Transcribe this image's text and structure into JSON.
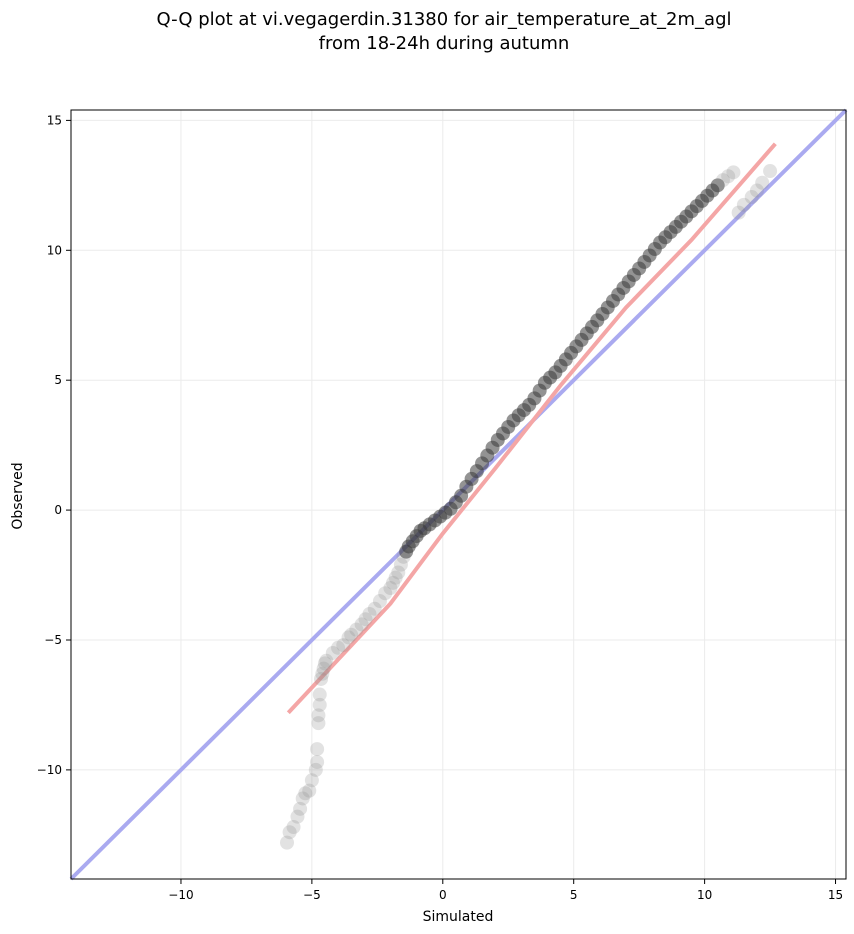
{
  "chart_data": {
    "type": "scatter",
    "title_lines": [
      "Q-Q plot at vi.vegagerdin.31380 for air_temperature_at_2m_agl",
      "from 18-24h during autumn"
    ],
    "xlabel": "Simulated",
    "ylabel": "Observed",
    "xlim": [
      -14.2,
      15.4
    ],
    "ylim": [
      -14.2,
      15.4
    ],
    "x_ticks": [
      -10,
      -5,
      0,
      5,
      10,
      15
    ],
    "y_ticks": [
      -10,
      -5,
      0,
      5,
      10,
      15
    ],
    "x_tick_labels": [
      "−10",
      "−5",
      "0",
      "5",
      "10",
      "15"
    ],
    "y_tick_labels": [
      "−10",
      "−5",
      "0",
      "5",
      "10",
      "15"
    ],
    "grid": true,
    "identity_line": {
      "x": [
        -14.2,
        15.4
      ],
      "y": [
        -14.2,
        15.4
      ],
      "color": "#aaaaf0"
    },
    "fit_line": {
      "x": [
        -5.9,
        -2.0,
        0.0,
        2.0,
        4.5,
        7.0,
        9.5,
        12.7
      ],
      "y": [
        -7.8,
        -3.6,
        -0.9,
        1.6,
        4.8,
        7.8,
        10.4,
        14.1
      ],
      "color": "#f4a6a6"
    },
    "series": [
      {
        "x": [
          -5.95,
          -5.85,
          -5.7,
          -5.55,
          -5.45,
          -5.35,
          -5.25,
          -5.1,
          -5.0,
          -4.85,
          -4.8,
          -4.8,
          -4.75,
          -4.75,
          -4.7,
          -4.7,
          -4.65,
          -4.6,
          -4.55,
          -4.5,
          -4.45,
          -4.2,
          -4.0,
          -3.8,
          -3.6,
          -3.5,
          -3.3,
          -3.1,
          -2.95,
          -2.8,
          -2.6,
          -2.4,
          -2.2,
          -2.0,
          -1.9,
          -1.8,
          -1.7,
          -1.6,
          -1.5,
          -1.4,
          -1.3,
          -1.15,
          -1.0,
          -0.85,
          -0.7,
          -0.5,
          -0.3,
          -0.1,
          0.1,
          0.3,
          0.5,
          0.7,
          0.9,
          1.1,
          1.3,
          1.5,
          1.7,
          1.9,
          2.1,
          2.3,
          2.5,
          2.7,
          2.9,
          3.1,
          3.3,
          3.5,
          3.7,
          3.9,
          4.1,
          4.3,
          4.5,
          4.7,
          4.9,
          5.1,
          5.3,
          5.5,
          5.7,
          5.9,
          6.1,
          6.3,
          6.5,
          6.7,
          6.9,
          7.1,
          7.3,
          7.5,
          7.7,
          7.9,
          8.1,
          8.3,
          8.5,
          8.7,
          8.9,
          9.1,
          9.3,
          9.5,
          9.7,
          9.9,
          10.1,
          10.3,
          10.5,
          10.7,
          10.9,
          11.1,
          11.3,
          11.5,
          11.8,
          12.0,
          12.2,
          12.5
        ],
        "y": [
          -12.8,
          -12.4,
          -12.2,
          -11.8,
          -11.5,
          -11.1,
          -10.9,
          -10.8,
          -10.4,
          -10.0,
          -9.7,
          -9.2,
          -8.2,
          -7.9,
          -7.5,
          -7.1,
          -6.5,
          -6.3,
          -6.1,
          -5.9,
          -5.8,
          -5.5,
          -5.3,
          -5.2,
          -4.9,
          -4.8,
          -4.6,
          -4.4,
          -4.2,
          -4.0,
          -3.8,
          -3.5,
          -3.2,
          -3.0,
          -2.8,
          -2.6,
          -2.4,
          -2.1,
          -1.8,
          -1.6,
          -1.4,
          -1.2,
          -1.0,
          -0.8,
          -0.7,
          -0.55,
          -0.4,
          -0.25,
          -0.1,
          0.05,
          0.3,
          0.55,
          0.9,
          1.2,
          1.5,
          1.8,
          2.1,
          2.4,
          2.7,
          2.95,
          3.2,
          3.45,
          3.65,
          3.85,
          4.05,
          4.3,
          4.6,
          4.9,
          5.1,
          5.3,
          5.55,
          5.8,
          6.05,
          6.3,
          6.55,
          6.8,
          7.05,
          7.3,
          7.55,
          7.8,
          8.05,
          8.3,
          8.55,
          8.8,
          9.05,
          9.3,
          9.55,
          9.8,
          10.05,
          10.3,
          10.5,
          10.7,
          10.9,
          11.1,
          11.3,
          11.5,
          11.7,
          11.9,
          12.1,
          12.3,
          12.5,
          12.7,
          12.85,
          13.0,
          11.45,
          11.75,
          12.05,
          12.3,
          12.6,
          13.05
        ]
      }
    ]
  }
}
